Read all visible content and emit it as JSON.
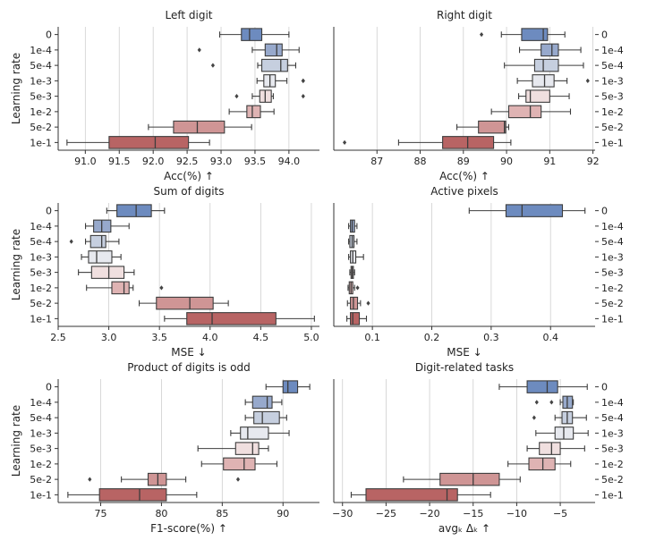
{
  "figure": {
    "ylabel": "Learning rate",
    "lr_labels": [
      "0",
      "1e-4",
      "5e-4",
      "1e-3",
      "5e-3",
      "1e-2",
      "5e-2",
      "1e-1"
    ],
    "colors": [
      "#6d8bbf",
      "#97a9cc",
      "#c6cfdf",
      "#e7e9ef",
      "#f0dfdf",
      "#dfb3b3",
      "#cf9595",
      "#b86464"
    ]
  },
  "chart_data": [
    {
      "type": "boxplot",
      "title": "Left digit",
      "xlabel": "Acc(%) ↑",
      "xlim": [
        90.6,
        94.45
      ],
      "xticks": [
        91.0,
        91.5,
        92.0,
        92.5,
        93.0,
        93.5,
        94.0
      ],
      "xtick_labels": [
        "91.0",
        "91.5",
        "92.0",
        "92.5",
        "93.0",
        "93.5",
        "94.0"
      ],
      "ytick_side": "left",
      "boxes": [
        {
          "label": "0",
          "whislo": 92.98,
          "q1": 93.3,
          "med": 93.42,
          "q3": 93.6,
          "whishi": 94.0,
          "fliers": []
        },
        {
          "label": "1e-4",
          "whislo": 93.46,
          "q1": 93.65,
          "med": 93.82,
          "q3": 93.9,
          "whishi": 94.15,
          "fliers": [
            92.68
          ]
        },
        {
          "label": "5e-4",
          "whislo": 93.54,
          "q1": 93.6,
          "med": 93.88,
          "q3": 93.98,
          "whishi": 94.1,
          "fliers": [
            92.88
          ]
        },
        {
          "label": "1e-3",
          "whislo": 93.53,
          "q1": 93.63,
          "med": 93.72,
          "q3": 93.8,
          "whishi": 93.97,
          "fliers": [
            94.21,
            94.21
          ]
        },
        {
          "label": "5e-3",
          "whislo": 93.46,
          "q1": 93.57,
          "med": 93.65,
          "q3": 93.74,
          "whishi": 93.77,
          "fliers": [
            93.23,
            94.21
          ]
        },
        {
          "label": "1e-2",
          "whislo": 93.12,
          "q1": 93.38,
          "med": 93.46,
          "q3": 93.58,
          "whishi": 93.78,
          "fliers": []
        },
        {
          "label": "5e-2",
          "whislo": 91.93,
          "q1": 92.3,
          "med": 92.65,
          "q3": 93.05,
          "whishi": 93.45,
          "fliers": []
        },
        {
          "label": "1e-1",
          "whislo": 90.73,
          "q1": 91.35,
          "med": 92.03,
          "q3": 92.52,
          "whishi": 92.83,
          "fliers": []
        }
      ]
    },
    {
      "type": "boxplot",
      "title": "Right digit",
      "xlabel": "Acc(%) ↑",
      "xlim": [
        86.0,
        92.05
      ],
      "xticks": [
        87,
        88,
        89,
        90,
        91,
        92
      ],
      "xtick_labels": [
        "87",
        "88",
        "89",
        "90",
        "91",
        "92"
      ],
      "ytick_side": "right",
      "boxes": [
        {
          "label": "0",
          "whislo": 89.88,
          "q1": 90.35,
          "med": 90.85,
          "q3": 90.95,
          "whishi": 91.35,
          "fliers": [
            89.42
          ]
        },
        {
          "label": "1e-4",
          "whislo": 90.3,
          "q1": 90.8,
          "med": 91.05,
          "q3": 91.2,
          "whishi": 91.72,
          "fliers": []
        },
        {
          "label": "5e-4",
          "whislo": 89.95,
          "q1": 90.65,
          "med": 90.85,
          "q3": 91.2,
          "whishi": 91.78,
          "fliers": []
        },
        {
          "label": "1e-3",
          "whislo": 90.25,
          "q1": 90.6,
          "med": 90.88,
          "q3": 91.1,
          "whishi": 91.4,
          "fliers": [
            91.88
          ]
        },
        {
          "label": "5e-3",
          "whislo": 90.28,
          "q1": 90.45,
          "med": 90.55,
          "q3": 91.0,
          "whishi": 91.45,
          "fliers": []
        },
        {
          "label": "1e-2",
          "whislo": 89.65,
          "q1": 90.05,
          "med": 90.55,
          "q3": 90.8,
          "whishi": 91.48,
          "fliers": []
        },
        {
          "label": "5e-2",
          "whislo": 88.85,
          "q1": 89.35,
          "med": 89.95,
          "q3": 89.98,
          "whishi": 90.05,
          "fliers": []
        },
        {
          "label": "1e-1",
          "whislo": 87.5,
          "q1": 88.52,
          "med": 89.1,
          "q3": 89.7,
          "whishi": 90.1,
          "fliers": [
            86.25
          ]
        }
      ]
    },
    {
      "type": "boxplot",
      "title": "Sum of digits",
      "xlabel": "MSE ↓",
      "xlim": [
        2.5,
        5.08
      ],
      "xticks": [
        2.5,
        3.0,
        3.5,
        4.0,
        4.5,
        5.0
      ],
      "xtick_labels": [
        "2.5",
        "3.0",
        "3.5",
        "4.0",
        "4.5",
        "5.0"
      ],
      "ytick_side": "left",
      "boxes": [
        {
          "label": "0",
          "whislo": 2.98,
          "q1": 3.08,
          "med": 3.27,
          "q3": 3.42,
          "whishi": 3.55,
          "fliers": []
        },
        {
          "label": "1e-4",
          "whislo": 2.77,
          "q1": 2.85,
          "med": 2.93,
          "q3": 3.02,
          "whishi": 3.2,
          "fliers": []
        },
        {
          "label": "5e-4",
          "whislo": 2.77,
          "q1": 2.82,
          "med": 2.93,
          "q3": 2.97,
          "whishi": 3.1,
          "fliers": [
            2.63
          ]
        },
        {
          "label": "1e-3",
          "whislo": 2.73,
          "q1": 2.8,
          "med": 2.88,
          "q3": 3.03,
          "whishi": 3.12,
          "fliers": []
        },
        {
          "label": "5e-3",
          "whislo": 2.7,
          "q1": 2.83,
          "med": 3.0,
          "q3": 3.15,
          "whishi": 3.25,
          "fliers": []
        },
        {
          "label": "1e-2",
          "whislo": 2.78,
          "q1": 3.03,
          "med": 3.15,
          "q3": 3.2,
          "whishi": 3.24,
          "fliers": [
            3.52
          ]
        },
        {
          "label": "5e-2",
          "whislo": 3.3,
          "q1": 3.47,
          "med": 3.8,
          "q3": 4.03,
          "whishi": 4.18,
          "fliers": []
        },
        {
          "label": "1e-1",
          "whislo": 3.55,
          "q1": 3.77,
          "med": 4.02,
          "q3": 4.65,
          "whishi": 5.03,
          "fliers": []
        }
      ]
    },
    {
      "type": "boxplot",
      "title": "Active pixels",
      "xlabel": "MSE ↓",
      "xlim": [
        0.035,
        0.475
      ],
      "xticks": [
        0.1,
        0.2,
        0.3,
        0.4
      ],
      "xtick_labels": [
        "0.1",
        "0.2",
        "0.3",
        "0.4"
      ],
      "ytick_side": "right",
      "boxes": [
        {
          "label": "0",
          "whislo": 0.263,
          "q1": 0.325,
          "med": 0.352,
          "q3": 0.42,
          "whishi": 0.458,
          "fliers": []
        },
        {
          "label": "1e-4",
          "whislo": 0.06,
          "q1": 0.063,
          "med": 0.066,
          "q3": 0.07,
          "whishi": 0.074,
          "fliers": []
        },
        {
          "label": "5e-4",
          "whislo": 0.06,
          "q1": 0.062,
          "med": 0.066,
          "q3": 0.069,
          "whishi": 0.074,
          "fliers": []
        },
        {
          "label": "1e-3",
          "whislo": 0.06,
          "q1": 0.063,
          "med": 0.067,
          "q3": 0.072,
          "whishi": 0.085,
          "fliers": []
        },
        {
          "label": "5e-3",
          "whislo": 0.062,
          "q1": 0.064,
          "med": 0.066,
          "q3": 0.068,
          "whishi": 0.07,
          "fliers": []
        },
        {
          "label": "1e-2",
          "whislo": 0.059,
          "q1": 0.061,
          "med": 0.064,
          "q3": 0.067,
          "whishi": 0.07,
          "fliers": [
            0.075
          ]
        },
        {
          "label": "5e-2",
          "whislo": 0.058,
          "q1": 0.063,
          "med": 0.068,
          "q3": 0.075,
          "whishi": 0.08,
          "fliers": [
            0.093
          ]
        },
        {
          "label": "1e-1",
          "whislo": 0.057,
          "q1": 0.063,
          "med": 0.067,
          "q3": 0.078,
          "whishi": 0.09,
          "fliers": []
        }
      ]
    },
    {
      "type": "boxplot",
      "title": "Product of digits is odd",
      "xlabel": "F1-score(%) ↑",
      "xlim": [
        71.5,
        93.0
      ],
      "xticks": [
        75,
        80,
        85,
        90
      ],
      "xtick_labels": [
        "75",
        "80",
        "85",
        "90"
      ],
      "ytick_side": "left",
      "boxes": [
        {
          "label": "0",
          "whislo": 88.6,
          "q1": 90.0,
          "med": 90.4,
          "q3": 91.2,
          "whishi": 92.2,
          "fliers": []
        },
        {
          "label": "1e-4",
          "whislo": 86.9,
          "q1": 87.5,
          "med": 88.7,
          "q3": 89.1,
          "whishi": 89.9,
          "fliers": []
        },
        {
          "label": "5e-4",
          "whislo": 86.9,
          "q1": 87.6,
          "med": 88.3,
          "q3": 89.7,
          "whishi": 90.3,
          "fliers": []
        },
        {
          "label": "1e-3",
          "whislo": 85.7,
          "q1": 86.5,
          "med": 87.1,
          "q3": 88.8,
          "whishi": 90.5,
          "fliers": []
        },
        {
          "label": "5e-3",
          "whislo": 83.0,
          "q1": 86.1,
          "med": 87.5,
          "q3": 88.0,
          "whishi": 88.8,
          "fliers": []
        },
        {
          "label": "1e-2",
          "whislo": 83.3,
          "q1": 85.1,
          "med": 86.8,
          "q3": 87.7,
          "whishi": 89.5,
          "fliers": []
        },
        {
          "label": "5e-2",
          "whislo": 76.7,
          "q1": 78.9,
          "med": 79.7,
          "q3": 80.4,
          "whishi": 82.0,
          "fliers": [
            74.1,
            86.3
          ]
        },
        {
          "label": "1e-1",
          "whislo": 72.3,
          "q1": 74.9,
          "med": 78.2,
          "q3": 80.4,
          "whishi": 82.9,
          "fliers": []
        }
      ]
    },
    {
      "type": "boxplot",
      "title": "Digit-related tasks",
      "xlabel": "avgₖ Δₖ ↑",
      "xlim": [
        -31.0,
        -1.0
      ],
      "xticks": [
        -30,
        -25,
        -20,
        -15,
        -10,
        -5
      ],
      "xtick_labels": [
        "−30",
        "−25",
        "−20",
        "−15",
        "−10",
        "−5"
      ],
      "ytick_side": "right",
      "boxes": [
        {
          "label": "0",
          "whislo": -12.0,
          "q1": -8.8,
          "med": -6.5,
          "q3": -5.3,
          "whishi": -1.9,
          "fliers": []
        },
        {
          "label": "1e-4",
          "whislo": -5.0,
          "q1": -4.7,
          "med": -4.2,
          "q3": -3.6,
          "whishi": -3.5,
          "fliers": [
            -7.7,
            -6.0
          ]
        },
        {
          "label": "5e-4",
          "whislo": -5.6,
          "q1": -4.8,
          "med": -4.2,
          "q3": -3.6,
          "whishi": -2.0,
          "fliers": [
            -8.0
          ]
        },
        {
          "label": "1e-3",
          "whislo": -7.8,
          "q1": -5.6,
          "med": -4.6,
          "q3": -3.5,
          "whishi": -1.8,
          "fliers": []
        },
        {
          "label": "5e-3",
          "whislo": -8.8,
          "q1": -7.4,
          "med": -6.0,
          "q3": -5.0,
          "whishi": -2.2,
          "fliers": []
        },
        {
          "label": "1e-2",
          "whislo": -11.0,
          "q1": -8.6,
          "med": -7.0,
          "q3": -5.6,
          "whishi": -3.8,
          "fliers": []
        },
        {
          "label": "5e-2",
          "whislo": -23.0,
          "q1": -18.8,
          "med": -15.0,
          "q3": -12.0,
          "whishi": -9.6,
          "fliers": []
        },
        {
          "label": "1e-1",
          "whislo": -29.0,
          "q1": -27.3,
          "med": -18.0,
          "q3": -16.8,
          "whishi": -13.0,
          "fliers": []
        }
      ]
    }
  ]
}
